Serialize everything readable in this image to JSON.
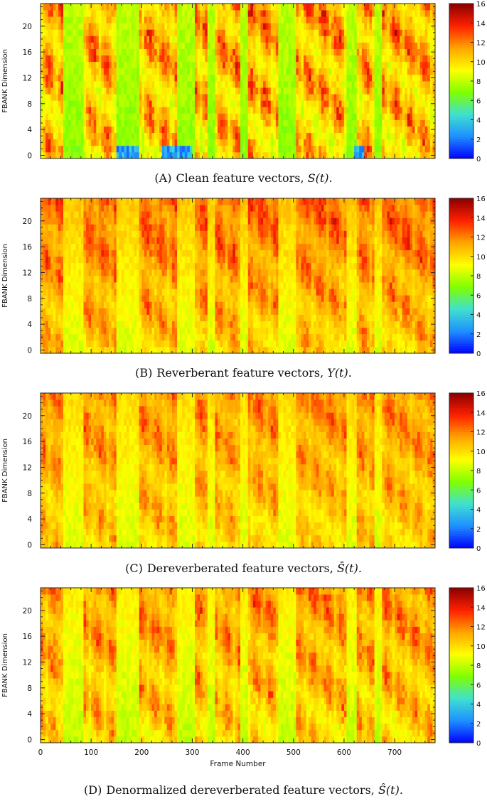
{
  "colors": {
    "frame": "#222222",
    "cmap": [
      "#0000ff",
      "#1e90ff",
      "#40e0d0",
      "#7fff00",
      "#ffff00",
      "#ffa500",
      "#ff2000",
      "#8b0000"
    ]
  },
  "chart_data": [
    {
      "type": "heatmap",
      "id": "A",
      "caption": {
        "tag": "(A)",
        "text": "Clean feature vectors,",
        "math": "S(t)",
        "end": "."
      },
      "ylabel": "FBANK Dimension",
      "xlabel": "",
      "xlim": [
        0,
        780
      ],
      "ylim": [
        -0.5,
        23.5
      ],
      "yticks": [
        0,
        4,
        8,
        12,
        16,
        20
      ],
      "xticks": [],
      "colorbar": {
        "range": [
          0,
          16
        ],
        "ticks": [
          0,
          2,
          4,
          6,
          8,
          10,
          12,
          14,
          16
        ]
      },
      "base_low": 7.0,
      "base_high": 8.0,
      "speech_segments": [
        [
          0,
          45
        ],
        [
          85,
          150
        ],
        [
          195,
          270
        ],
        [
          305,
          330
        ],
        [
          345,
          395
        ],
        [
          410,
          470
        ],
        [
          505,
          605
        ],
        [
          625,
          660
        ],
        [
          675,
          780
        ]
      ],
      "silence_segments": [
        [
          150,
          195
        ],
        [
          240,
          300
        ],
        [
          620,
          640
        ]
      ],
      "min_value": 1.5,
      "max_value": 15.5
    },
    {
      "type": "heatmap",
      "id": "B",
      "caption": {
        "tag": "(B)",
        "text": "Reverberant feature vectors,",
        "math": "Y(t)",
        "end": "."
      },
      "ylabel": "FBANK Dimension",
      "xlabel": "",
      "xlim": [
        0,
        780
      ],
      "ylim": [
        -0.5,
        23.5
      ],
      "yticks": [
        0,
        4,
        8,
        12,
        16,
        20
      ],
      "xticks": [],
      "colorbar": {
        "range": [
          0,
          16
        ],
        "ticks": [
          0,
          2,
          4,
          6,
          8,
          10,
          12,
          14,
          16
        ]
      },
      "base_low": 8.5,
      "base_high": 10.5,
      "speech_segments": [
        [
          0,
          45
        ],
        [
          85,
          150
        ],
        [
          195,
          270
        ],
        [
          305,
          330
        ],
        [
          345,
          395
        ],
        [
          410,
          470
        ],
        [
          505,
          605
        ],
        [
          625,
          660
        ],
        [
          675,
          780
        ]
      ],
      "silence_segments": [],
      "min_value": 6.5,
      "max_value": 15.0
    },
    {
      "type": "heatmap",
      "id": "C",
      "caption": {
        "tag": "(C)",
        "text": "Dereverberated feature vectors,",
        "math": "S̄(t)",
        "end": "."
      },
      "ylabel": "FBANK Dimension",
      "xlabel": "",
      "xlim": [
        0,
        780
      ],
      "ylim": [
        -0.5,
        23.5
      ],
      "yticks": [
        0,
        4,
        8,
        12,
        16,
        20
      ],
      "xticks": [],
      "colorbar": {
        "range": [
          0,
          16
        ],
        "ticks": [
          0,
          2,
          4,
          6,
          8,
          10,
          12,
          14,
          16
        ]
      },
      "base_low": 8.5,
      "base_high": 10.0,
      "speech_segments": [
        [
          0,
          45
        ],
        [
          85,
          150
        ],
        [
          195,
          270
        ],
        [
          305,
          330
        ],
        [
          345,
          395
        ],
        [
          410,
          470
        ],
        [
          505,
          605
        ],
        [
          625,
          660
        ],
        [
          675,
          780
        ]
      ],
      "silence_segments": [],
      "min_value": 7.0,
      "max_value": 14.0
    },
    {
      "type": "heatmap",
      "id": "D",
      "caption": {
        "tag": "(D)",
        "text": "Denormalized dereverberated feature vectors,",
        "math": "Ŝ(t)",
        "end": "."
      },
      "ylabel": "FBANK Dimension",
      "xlabel": "Frame Number",
      "xlim": [
        0,
        780
      ],
      "ylim": [
        -0.5,
        23.5
      ],
      "yticks": [
        0,
        4,
        8,
        12,
        16,
        20
      ],
      "xticks": [
        0,
        100,
        200,
        300,
        400,
        500,
        600,
        700
      ],
      "colorbar": {
        "range": [
          0,
          16
        ],
        "ticks": [
          0,
          2,
          4,
          6,
          8,
          10,
          12,
          14,
          16
        ]
      },
      "base_low": 8.0,
      "base_high": 9.5,
      "speech_segments": [
        [
          0,
          45
        ],
        [
          85,
          150
        ],
        [
          195,
          270
        ],
        [
          305,
          330
        ],
        [
          345,
          395
        ],
        [
          410,
          470
        ],
        [
          505,
          605
        ],
        [
          625,
          660
        ],
        [
          675,
          780
        ]
      ],
      "silence_segments": [],
      "min_value": 6.0,
      "max_value": 14.5
    }
  ]
}
